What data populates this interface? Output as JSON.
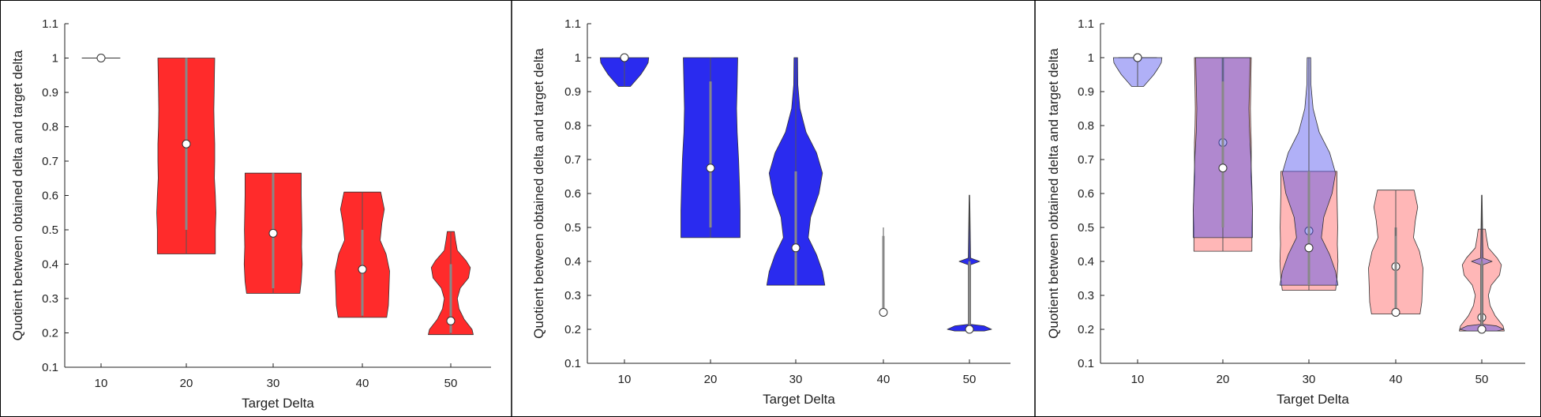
{
  "chart_data": [
    {
      "type": "violin",
      "xlabel": "Target Delta",
      "ylabel": "Quotient between obtained delta and target delta",
      "categories": [
        "10",
        "20",
        "30",
        "40",
        "50"
      ],
      "ylim": [
        0.1,
        1.1
      ],
      "yticks": [
        "0.1",
        "0.2",
        "0.3",
        "0.4",
        "0.5",
        "0.6",
        "0.7",
        "0.8",
        "0.9",
        "1",
        "1.1"
      ],
      "series": [
        {
          "color": "#ff2020",
          "opacity": 0.95,
          "violins": [
            {
              "x": "10",
              "median": 1.0,
              "min": 1.0,
              "max": 1.0,
              "q1": 1.0,
              "q3": 1.0,
              "profile": [
                [
                  1.0,
                  0.5
                ]
              ]
            },
            {
              "x": "20",
              "median": 0.75,
              "min": 0.43,
              "max": 1.0,
              "q1": 0.5,
              "q3": 1.0,
              "profile": [
                [
                  0.43,
                  0.98
                ],
                [
                  0.5,
                  0.98
                ],
                [
                  0.55,
                  1.0
                ],
                [
                  0.6,
                  0.98
                ],
                [
                  0.65,
                  0.95
                ],
                [
                  0.7,
                  0.96
                ],
                [
                  0.75,
                  0.96
                ],
                [
                  0.8,
                  0.94
                ],
                [
                  0.85,
                  0.93
                ],
                [
                  0.9,
                  0.94
                ],
                [
                  0.95,
                  0.95
                ],
                [
                  1.0,
                  0.96
                ]
              ]
            },
            {
              "x": "30",
              "median": 0.49,
              "min": 0.315,
              "max": 0.665,
              "q1": 0.33,
              "q3": 0.665,
              "profile": [
                [
                  0.315,
                  0.9
                ],
                [
                  0.35,
                  0.95
                ],
                [
                  0.4,
                  0.98
                ],
                [
                  0.45,
                  0.96
                ],
                [
                  0.5,
                  0.97
                ],
                [
                  0.55,
                  0.96
                ],
                [
                  0.6,
                  0.95
                ],
                [
                  0.665,
                  0.95
                ]
              ]
            },
            {
              "x": "40",
              "median": 0.385,
              "min": 0.245,
              "max": 0.61,
              "q1": 0.25,
              "q3": 0.5,
              "profile": [
                [
                  0.245,
                  0.82
                ],
                [
                  0.28,
                  0.88
                ],
                [
                  0.33,
                  0.9
                ],
                [
                  0.38,
                  0.92
                ],
                [
                  0.43,
                  0.8
                ],
                [
                  0.47,
                  0.6
                ],
                [
                  0.52,
                  0.66
                ],
                [
                  0.56,
                  0.74
                ],
                [
                  0.61,
                  0.62
                ]
              ]
            },
            {
              "x": "50",
              "median": 0.235,
              "min": 0.195,
              "max": 0.495,
              "q1": 0.2,
              "q3": 0.4,
              "profile": [
                [
                  0.195,
                  0.76
                ],
                [
                  0.21,
                  0.72
                ],
                [
                  0.24,
                  0.45
                ],
                [
                  0.27,
                  0.28
                ],
                [
                  0.3,
                  0.22
                ],
                [
                  0.33,
                  0.32
                ],
                [
                  0.36,
                  0.6
                ],
                [
                  0.39,
                  0.66
                ],
                [
                  0.41,
                  0.52
                ],
                [
                  0.44,
                  0.22
                ],
                [
                  0.47,
                  0.16
                ],
                [
                  0.495,
                  0.12
                ]
              ]
            }
          ]
        }
      ]
    },
    {
      "type": "violin",
      "xlabel": "Target Delta",
      "ylabel": "Quotient between obtained delta and target delta",
      "categories": [
        "10",
        "20",
        "30",
        "40",
        "50"
      ],
      "ylim": [
        0.1,
        1.1
      ],
      "yticks": [
        "0.1",
        "0.2",
        "0.3",
        "0.4",
        "0.5",
        "0.6",
        "0.7",
        "0.8",
        "0.9",
        "1",
        "1.1"
      ],
      "series": [
        {
          "color": "#1f20ee",
          "opacity": 0.95,
          "violins": [
            {
              "x": "10",
              "median": 1.0,
              "min": 0.915,
              "max": 1.0,
              "q1": 1.0,
              "q3": 1.0,
              "profile": [
                [
                  0.915,
                  0.2
                ],
                [
                  0.93,
                  0.35
                ],
                [
                  0.95,
                  0.55
                ],
                [
                  0.97,
                  0.7
                ],
                [
                  0.985,
                  0.8
                ],
                [
                  1.0,
                  0.82
                ]
              ]
            },
            {
              "x": "20",
              "median": 0.675,
              "min": 0.47,
              "max": 1.0,
              "q1": 0.5,
              "q3": 0.93,
              "profile": [
                [
                  0.47,
                  1.0
                ],
                [
                  0.55,
                  1.0
                ],
                [
                  0.62,
                  0.98
                ],
                [
                  0.7,
                  0.95
                ],
                [
                  0.78,
                  0.9
                ],
                [
                  0.85,
                  0.88
                ],
                [
                  0.92,
                  0.9
                ],
                [
                  1.0,
                  0.92
                ]
              ]
            },
            {
              "x": "30",
              "median": 0.44,
              "min": 0.33,
              "max": 1.0,
              "q1": 0.33,
              "q3": 0.665,
              "profile": [
                [
                  0.33,
                  0.98
                ],
                [
                  0.37,
                  0.9
                ],
                [
                  0.42,
                  0.7
                ],
                [
                  0.47,
                  0.42
                ],
                [
                  0.53,
                  0.5
                ],
                [
                  0.6,
                  0.78
                ],
                [
                  0.66,
                  0.9
                ],
                [
                  0.72,
                  0.7
                ],
                [
                  0.78,
                  0.35
                ],
                [
                  0.85,
                  0.14
                ],
                [
                  0.92,
                  0.07
                ],
                [
                  1.0,
                  0.06
                ]
              ]
            },
            {
              "x": "40",
              "median": 0.25,
              "min": 0.25,
              "max": 0.5,
              "q1": 0.25,
              "q3": 0.475,
              "profile": []
            },
            {
              "x": "50",
              "median": 0.2,
              "min": 0.2,
              "max": 0.595,
              "q1": 0.2,
              "q3": 0.4,
              "profile": [
                [
                  0.195,
                  0.5
                ],
                [
                  0.2,
                  0.75
                ],
                [
                  0.21,
                  0.5
                ],
                [
                  0.215,
                  0.04
                ],
                [
                  0.39,
                  0.04
                ],
                [
                  0.4,
                  0.35
                ],
                [
                  0.41,
                  0.04
                ],
                [
                  0.595,
                  0.01
                ]
              ]
            }
          ]
        }
      ]
    },
    {
      "type": "violin",
      "xlabel": "Target Delta",
      "ylabel": "Quotient between obtained delta and target delta",
      "categories": [
        "10",
        "20",
        "30",
        "40",
        "50"
      ],
      "ylim": [
        0.1,
        1.1
      ],
      "yticks": [
        "0.1",
        "0.2",
        "0.3",
        "0.4",
        "0.5",
        "0.6",
        "0.7",
        "0.8",
        "0.9",
        "1",
        "1.1"
      ],
      "series": [
        {
          "color": "#ff7070",
          "opacity": 0.5,
          "violins": [
            {
              "x": "10",
              "median": 1.0,
              "min": 1.0,
              "max": 1.0,
              "q1": 1.0,
              "q3": 1.0,
              "profile": [
                [
                  1.0,
                  0.5
                ]
              ]
            },
            {
              "x": "20",
              "median": 0.75,
              "min": 0.43,
              "max": 1.0,
              "q1": 0.5,
              "q3": 1.0,
              "profile": [
                [
                  0.43,
                  0.98
                ],
                [
                  0.5,
                  0.98
                ],
                [
                  0.55,
                  1.0
                ],
                [
                  0.6,
                  0.98
                ],
                [
                  0.65,
                  0.95
                ],
                [
                  0.7,
                  0.96
                ],
                [
                  0.75,
                  0.96
                ],
                [
                  0.8,
                  0.94
                ],
                [
                  0.85,
                  0.93
                ],
                [
                  0.9,
                  0.94
                ],
                [
                  0.95,
                  0.95
                ],
                [
                  1.0,
                  0.96
                ]
              ]
            },
            {
              "x": "30",
              "median": 0.49,
              "min": 0.315,
              "max": 0.665,
              "q1": 0.33,
              "q3": 0.665,
              "profile": [
                [
                  0.315,
                  0.9
                ],
                [
                  0.35,
                  0.95
                ],
                [
                  0.4,
                  0.98
                ],
                [
                  0.45,
                  0.96
                ],
                [
                  0.5,
                  0.97
                ],
                [
                  0.55,
                  0.96
                ],
                [
                  0.6,
                  0.95
                ],
                [
                  0.665,
                  0.95
                ]
              ]
            },
            {
              "x": "40",
              "median": 0.385,
              "min": 0.245,
              "max": 0.61,
              "q1": 0.25,
              "q3": 0.5,
              "profile": [
                [
                  0.245,
                  0.82
                ],
                [
                  0.28,
                  0.88
                ],
                [
                  0.33,
                  0.9
                ],
                [
                  0.38,
                  0.92
                ],
                [
                  0.43,
                  0.8
                ],
                [
                  0.47,
                  0.6
                ],
                [
                  0.52,
                  0.66
                ],
                [
                  0.56,
                  0.74
                ],
                [
                  0.61,
                  0.62
                ]
              ]
            },
            {
              "x": "50",
              "median": 0.235,
              "min": 0.195,
              "max": 0.495,
              "q1": 0.2,
              "q3": 0.4,
              "profile": [
                [
                  0.195,
                  0.76
                ],
                [
                  0.21,
                  0.72
                ],
                [
                  0.24,
                  0.45
                ],
                [
                  0.27,
                  0.28
                ],
                [
                  0.3,
                  0.22
                ],
                [
                  0.33,
                  0.32
                ],
                [
                  0.36,
                  0.6
                ],
                [
                  0.39,
                  0.66
                ],
                [
                  0.41,
                  0.52
                ],
                [
                  0.44,
                  0.22
                ],
                [
                  0.47,
                  0.16
                ],
                [
                  0.495,
                  0.12
                ]
              ]
            }
          ]
        },
        {
          "color": "#5050ee",
          "opacity": 0.45,
          "violins": [
            {
              "x": "10",
              "median": 1.0,
              "min": 0.915,
              "max": 1.0,
              "q1": 1.0,
              "q3": 1.0,
              "profile": [
                [
                  0.915,
                  0.2
                ],
                [
                  0.93,
                  0.35
                ],
                [
                  0.95,
                  0.55
                ],
                [
                  0.97,
                  0.7
                ],
                [
                  0.985,
                  0.8
                ],
                [
                  1.0,
                  0.82
                ]
              ]
            },
            {
              "x": "20",
              "median": 0.675,
              "min": 0.47,
              "max": 1.0,
              "q1": 0.5,
              "q3": 0.93,
              "profile": [
                [
                  0.47,
                  1.0
                ],
                [
                  0.55,
                  1.0
                ],
                [
                  0.62,
                  0.98
                ],
                [
                  0.7,
                  0.95
                ],
                [
                  0.78,
                  0.9
                ],
                [
                  0.85,
                  0.88
                ],
                [
                  0.92,
                  0.9
                ],
                [
                  1.0,
                  0.92
                ]
              ]
            },
            {
              "x": "30",
              "median": 0.44,
              "min": 0.33,
              "max": 1.0,
              "q1": 0.33,
              "q3": 0.665,
              "profile": [
                [
                  0.33,
                  0.98
                ],
                [
                  0.37,
                  0.9
                ],
                [
                  0.42,
                  0.7
                ],
                [
                  0.47,
                  0.42
                ],
                [
                  0.53,
                  0.5
                ],
                [
                  0.6,
                  0.78
                ],
                [
                  0.66,
                  0.9
                ],
                [
                  0.72,
                  0.7
                ],
                [
                  0.78,
                  0.35
                ],
                [
                  0.85,
                  0.14
                ],
                [
                  0.92,
                  0.07
                ],
                [
                  1.0,
                  0.06
                ]
              ]
            },
            {
              "x": "40",
              "median": 0.25,
              "min": 0.25,
              "max": 0.5,
              "q1": 0.25,
              "q3": 0.475,
              "profile": []
            },
            {
              "x": "50",
              "median": 0.2,
              "min": 0.2,
              "max": 0.595,
              "q1": 0.2,
              "q3": 0.4,
              "profile": [
                [
                  0.195,
                  0.5
                ],
                [
                  0.2,
                  0.75
                ],
                [
                  0.21,
                  0.5
                ],
                [
                  0.215,
                  0.04
                ],
                [
                  0.39,
                  0.04
                ],
                [
                  0.4,
                  0.35
                ],
                [
                  0.41,
                  0.04
                ],
                [
                  0.595,
                  0.01
                ]
              ]
            }
          ]
        }
      ]
    }
  ]
}
